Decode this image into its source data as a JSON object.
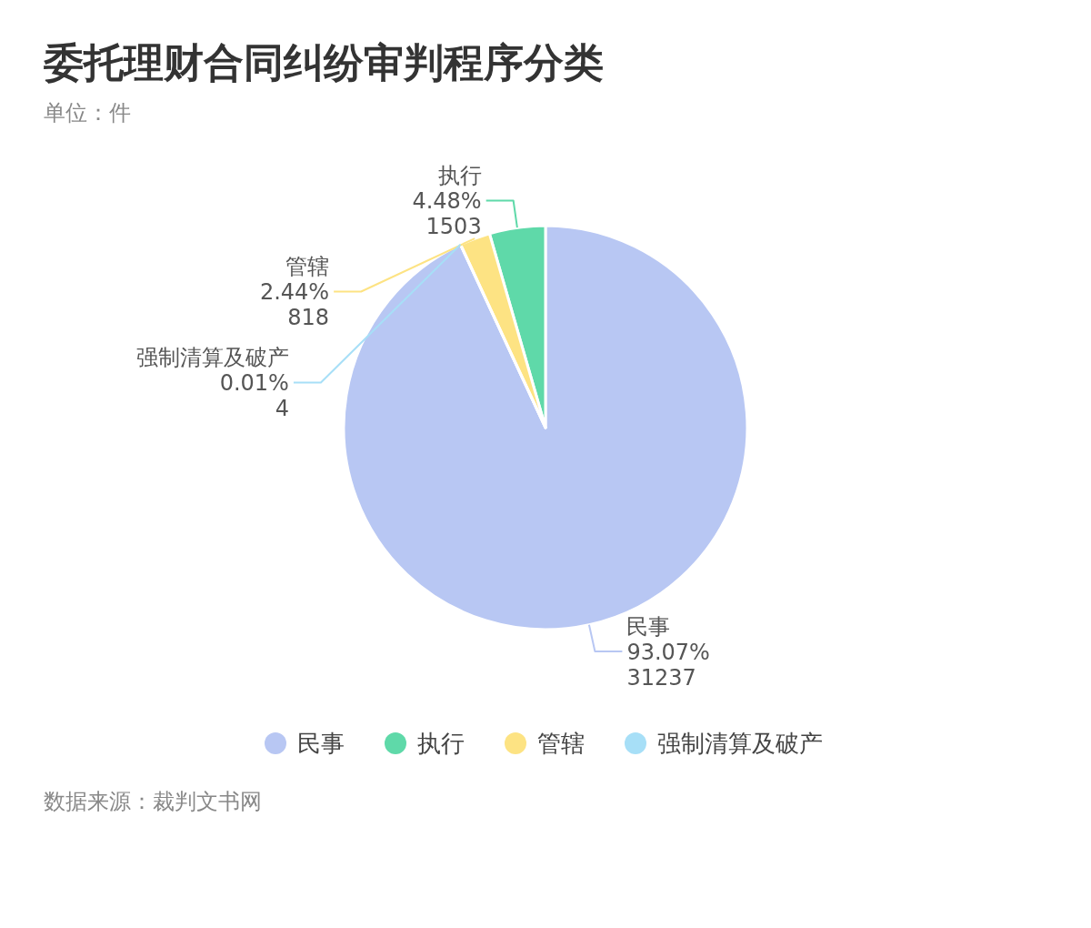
{
  "chart_data": {
    "type": "pie",
    "title": "委托理财合同纠纷审判程序分类",
    "subtitle": "单位：件",
    "categories": [
      "民事",
      "执行",
      "管辖",
      "强制清算及破产"
    ],
    "values": [
      31237,
      1503,
      818,
      4
    ],
    "colors": [
      "#b8c7f3",
      "#5fd9a9",
      "#fde383",
      "#a7dff7"
    ],
    "value_labels": [
      "93.07%\n31237",
      "4.48%\n1503",
      "2.44%\n818",
      "0.01%\n4"
    ],
    "legend": "bottom",
    "annotations": [
      "数据来源：裁判文书网"
    ]
  }
}
